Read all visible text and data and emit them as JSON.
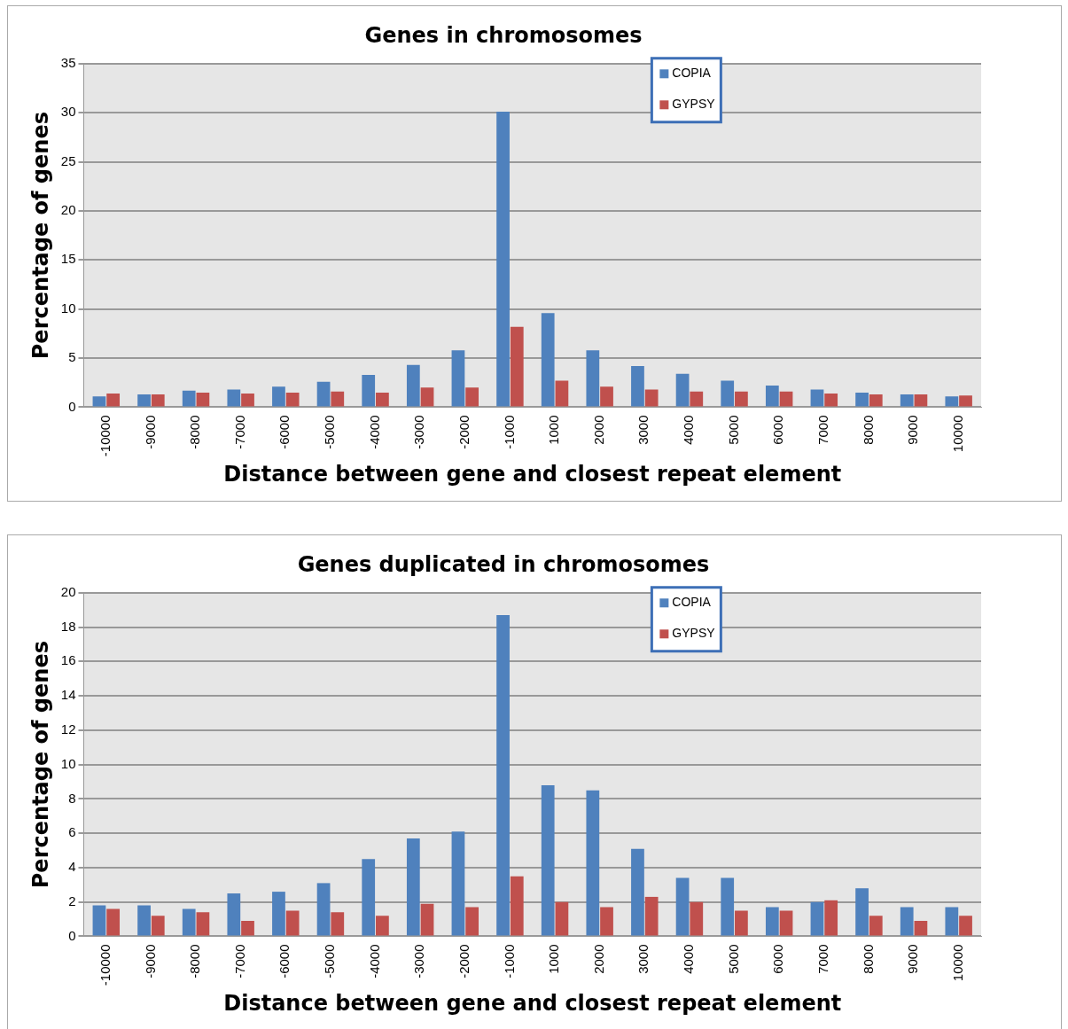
{
  "chart_data": [
    {
      "type": "bar",
      "title": "Genes in chromosomes",
      "xlabel": "Distance between gene and closest repeat element",
      "ylabel": "Percentage of genes",
      "categories": [
        "-10000",
        "-9000",
        "-8000",
        "-7000",
        "-6000",
        "-5000",
        "-4000",
        "-3000",
        "-2000",
        "-1000",
        "1000",
        "2000",
        "3000",
        "4000",
        "5000",
        "6000",
        "7000",
        "8000",
        "9000",
        "10000"
      ],
      "series": [
        {
          "name": "COPIA",
          "color": "#4f81bd",
          "values": [
            1.1,
            1.3,
            1.7,
            1.8,
            2.1,
            2.6,
            3.3,
            4.3,
            5.8,
            30.1,
            9.6,
            5.8,
            4.2,
            3.4,
            2.7,
            2.2,
            1.8,
            1.5,
            1.3,
            1.1
          ]
        },
        {
          "name": "GYPSY",
          "color": "#c0504d",
          "values": [
            1.4,
            1.3,
            1.5,
            1.4,
            1.5,
            1.6,
            1.5,
            2.0,
            2.0,
            8.2,
            2.7,
            2.1,
            1.8,
            1.6,
            1.6,
            1.6,
            1.4,
            1.3,
            1.3,
            1.2
          ]
        }
      ],
      "ylim": [
        0,
        35
      ],
      "yticks": [
        0,
        5,
        10,
        15,
        20,
        25,
        30,
        35
      ],
      "grid": "y",
      "legend": "top right"
    },
    {
      "type": "bar",
      "title": "Genes duplicated in chromosomes",
      "xlabel": "Distance between gene and closest repeat element",
      "ylabel": "Percentage of genes",
      "categories": [
        "-10000",
        "-9000",
        "-8000",
        "-7000",
        "-6000",
        "-5000",
        "-4000",
        "-3000",
        "-2000",
        "-1000",
        "1000",
        "2000",
        "3000",
        "4000",
        "5000",
        "6000",
        "7000",
        "8000",
        "9000",
        "10000"
      ],
      "series": [
        {
          "name": "COPIA",
          "color": "#4f81bd",
          "values": [
            1.8,
            1.8,
            1.6,
            2.5,
            2.6,
            3.1,
            4.5,
            5.7,
            6.1,
            18.7,
            8.8,
            8.5,
            5.1,
            3.4,
            3.4,
            1.7,
            2.0,
            2.8,
            1.7,
            1.7
          ]
        },
        {
          "name": "GYPSY",
          "color": "#c0504d",
          "values": [
            1.6,
            1.2,
            1.4,
            0.9,
            1.5,
            1.4,
            1.2,
            1.9,
            1.7,
            3.5,
            2.0,
            1.7,
            2.3,
            2.0,
            1.5,
            1.5,
            2.1,
            1.2,
            0.9,
            1.2
          ]
        }
      ],
      "ylim": [
        0,
        20
      ],
      "yticks": [
        0,
        2,
        4,
        6,
        8,
        10,
        12,
        14,
        16,
        18,
        20
      ],
      "grid": "y",
      "legend": "top right"
    }
  ]
}
